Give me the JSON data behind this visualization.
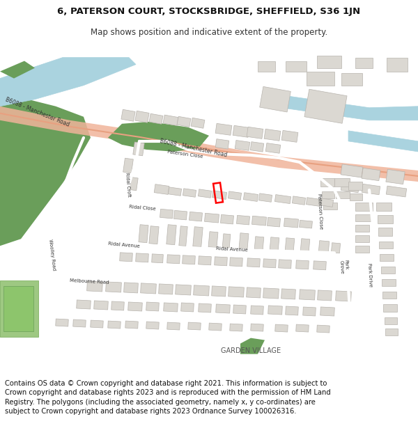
{
  "title_line1": "6, PATERSON COURT, STOCKSBRIDGE, SHEFFIELD, S36 1JN",
  "title_line2": "Map shows position and indicative extent of the property.",
  "footer_text": "Contains OS data © Crown copyright and database right 2021. This information is subject to Crown copyright and database rights 2023 and is reproduced with the permission of HM Land Registry. The polygons (including the associated geometry, namely x, y co-ordinates) are subject to Crown copyright and database rights 2023 Ordnance Survey 100026316.",
  "title_fontsize": 9.5,
  "subtitle_fontsize": 8.5,
  "footer_fontsize": 7.2,
  "map_bg": "#f2f0ed",
  "road_major_color": "#f0b49a",
  "road_minor_color": "#ffffff",
  "water_color": "#aad3df",
  "green_dark": "#6a9e5a",
  "green_light": "#9ec882",
  "building_color": "#dbd8d2",
  "building_edge": "#b8b4ae",
  "plot_color": "#ff0000",
  "road_label_color": "#333333",
  "label_fs": 5.2
}
